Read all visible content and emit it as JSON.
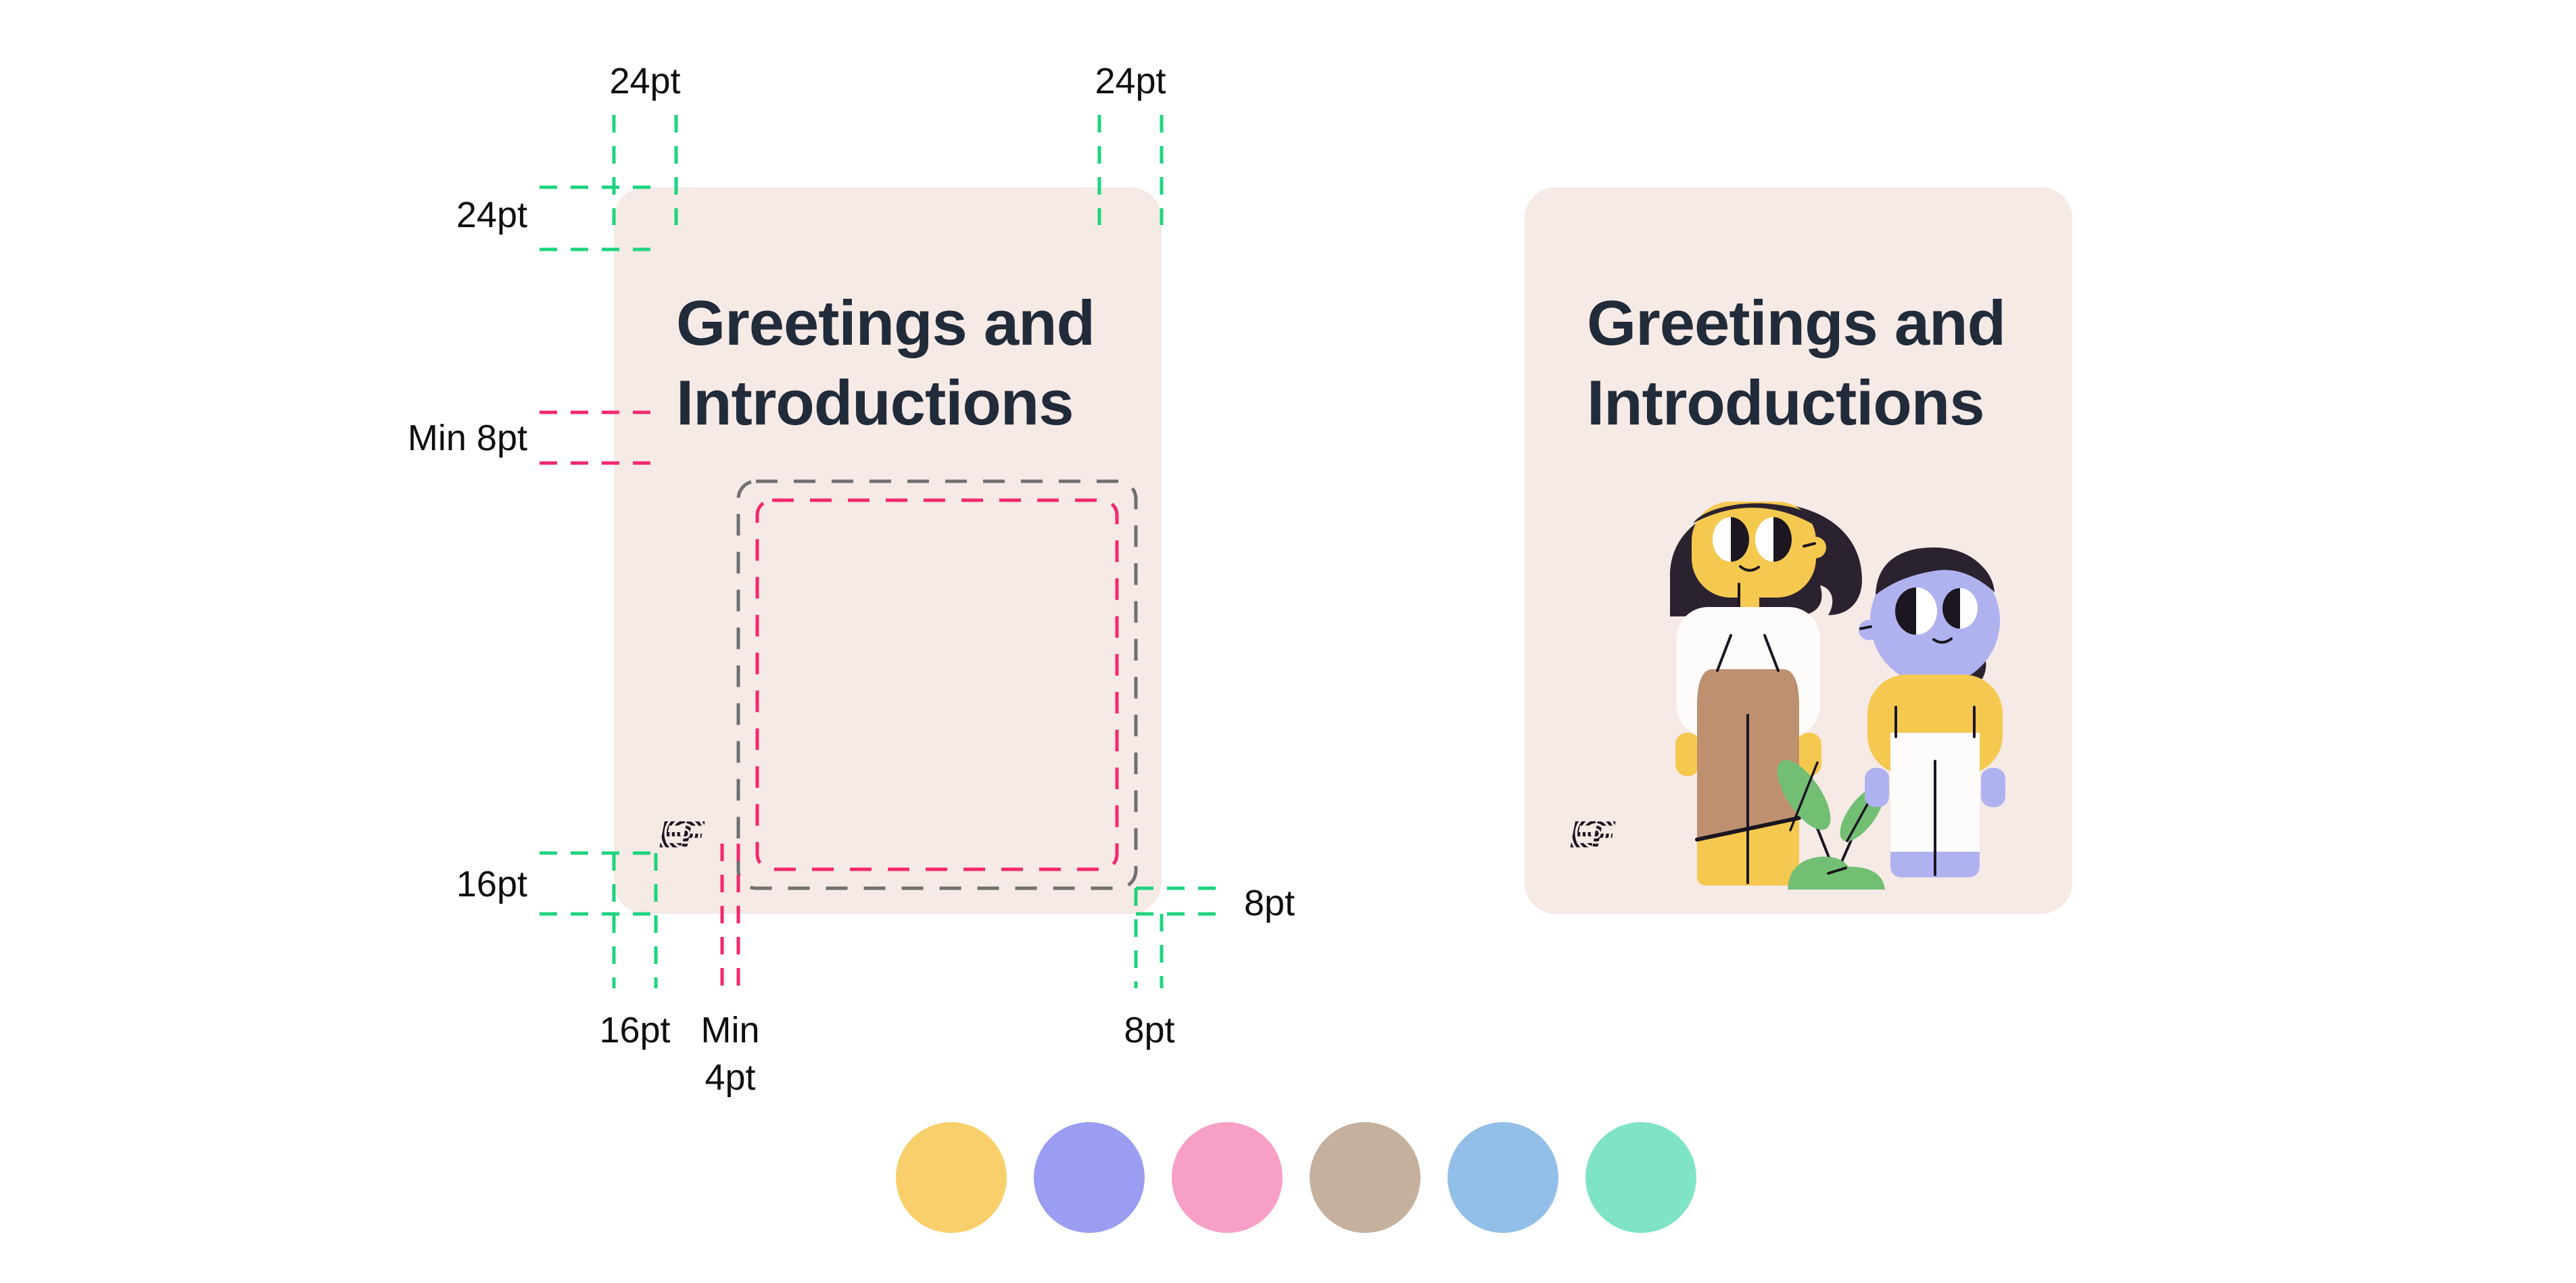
{
  "brand": {
    "logo_text": "EF"
  },
  "cards": {
    "title_line1": "Greetings and",
    "title_line2": "Introductions"
  },
  "measurements": {
    "top_left": "24pt",
    "top_right": "24pt",
    "side_top": "24pt",
    "title_image_gap": "Min 8pt",
    "logo_bottom": "16pt",
    "logo_left": "16pt",
    "logo_image_gap_word": "Min",
    "logo_image_gap_value": "4pt",
    "image_bottom_gap": "8pt",
    "image_right_gap": "8pt"
  },
  "colors": {
    "page_bg": "#ffffff",
    "card_bg": "#f6eae6",
    "title_ink": "#212b3a",
    "label_ink": "#0e0e0e",
    "guide_green": "#1ed47e",
    "guide_pink": "#f4286d",
    "guide_gray": "#707070",
    "ink_dark": "#1b1620",
    "skin_yellow": "#f5c84f",
    "hair_dark": "#2a222e",
    "shirt_white": "#fefcfb",
    "trouser_tan": "#be9070",
    "periwinkle": "#b0b2f0",
    "plant_green": "#72bf74"
  },
  "swatches": [
    {
      "name": "yellow",
      "hex": "#f8cf6b"
    },
    {
      "name": "periwinkle",
      "hex": "#9b9df2"
    },
    {
      "name": "pink",
      "hex": "#f89fc5"
    },
    {
      "name": "tan",
      "hex": "#c5af9d"
    },
    {
      "name": "blue",
      "hex": "#91bfe7"
    },
    {
      "name": "mint",
      "hex": "#7ee4c5"
    }
  ]
}
